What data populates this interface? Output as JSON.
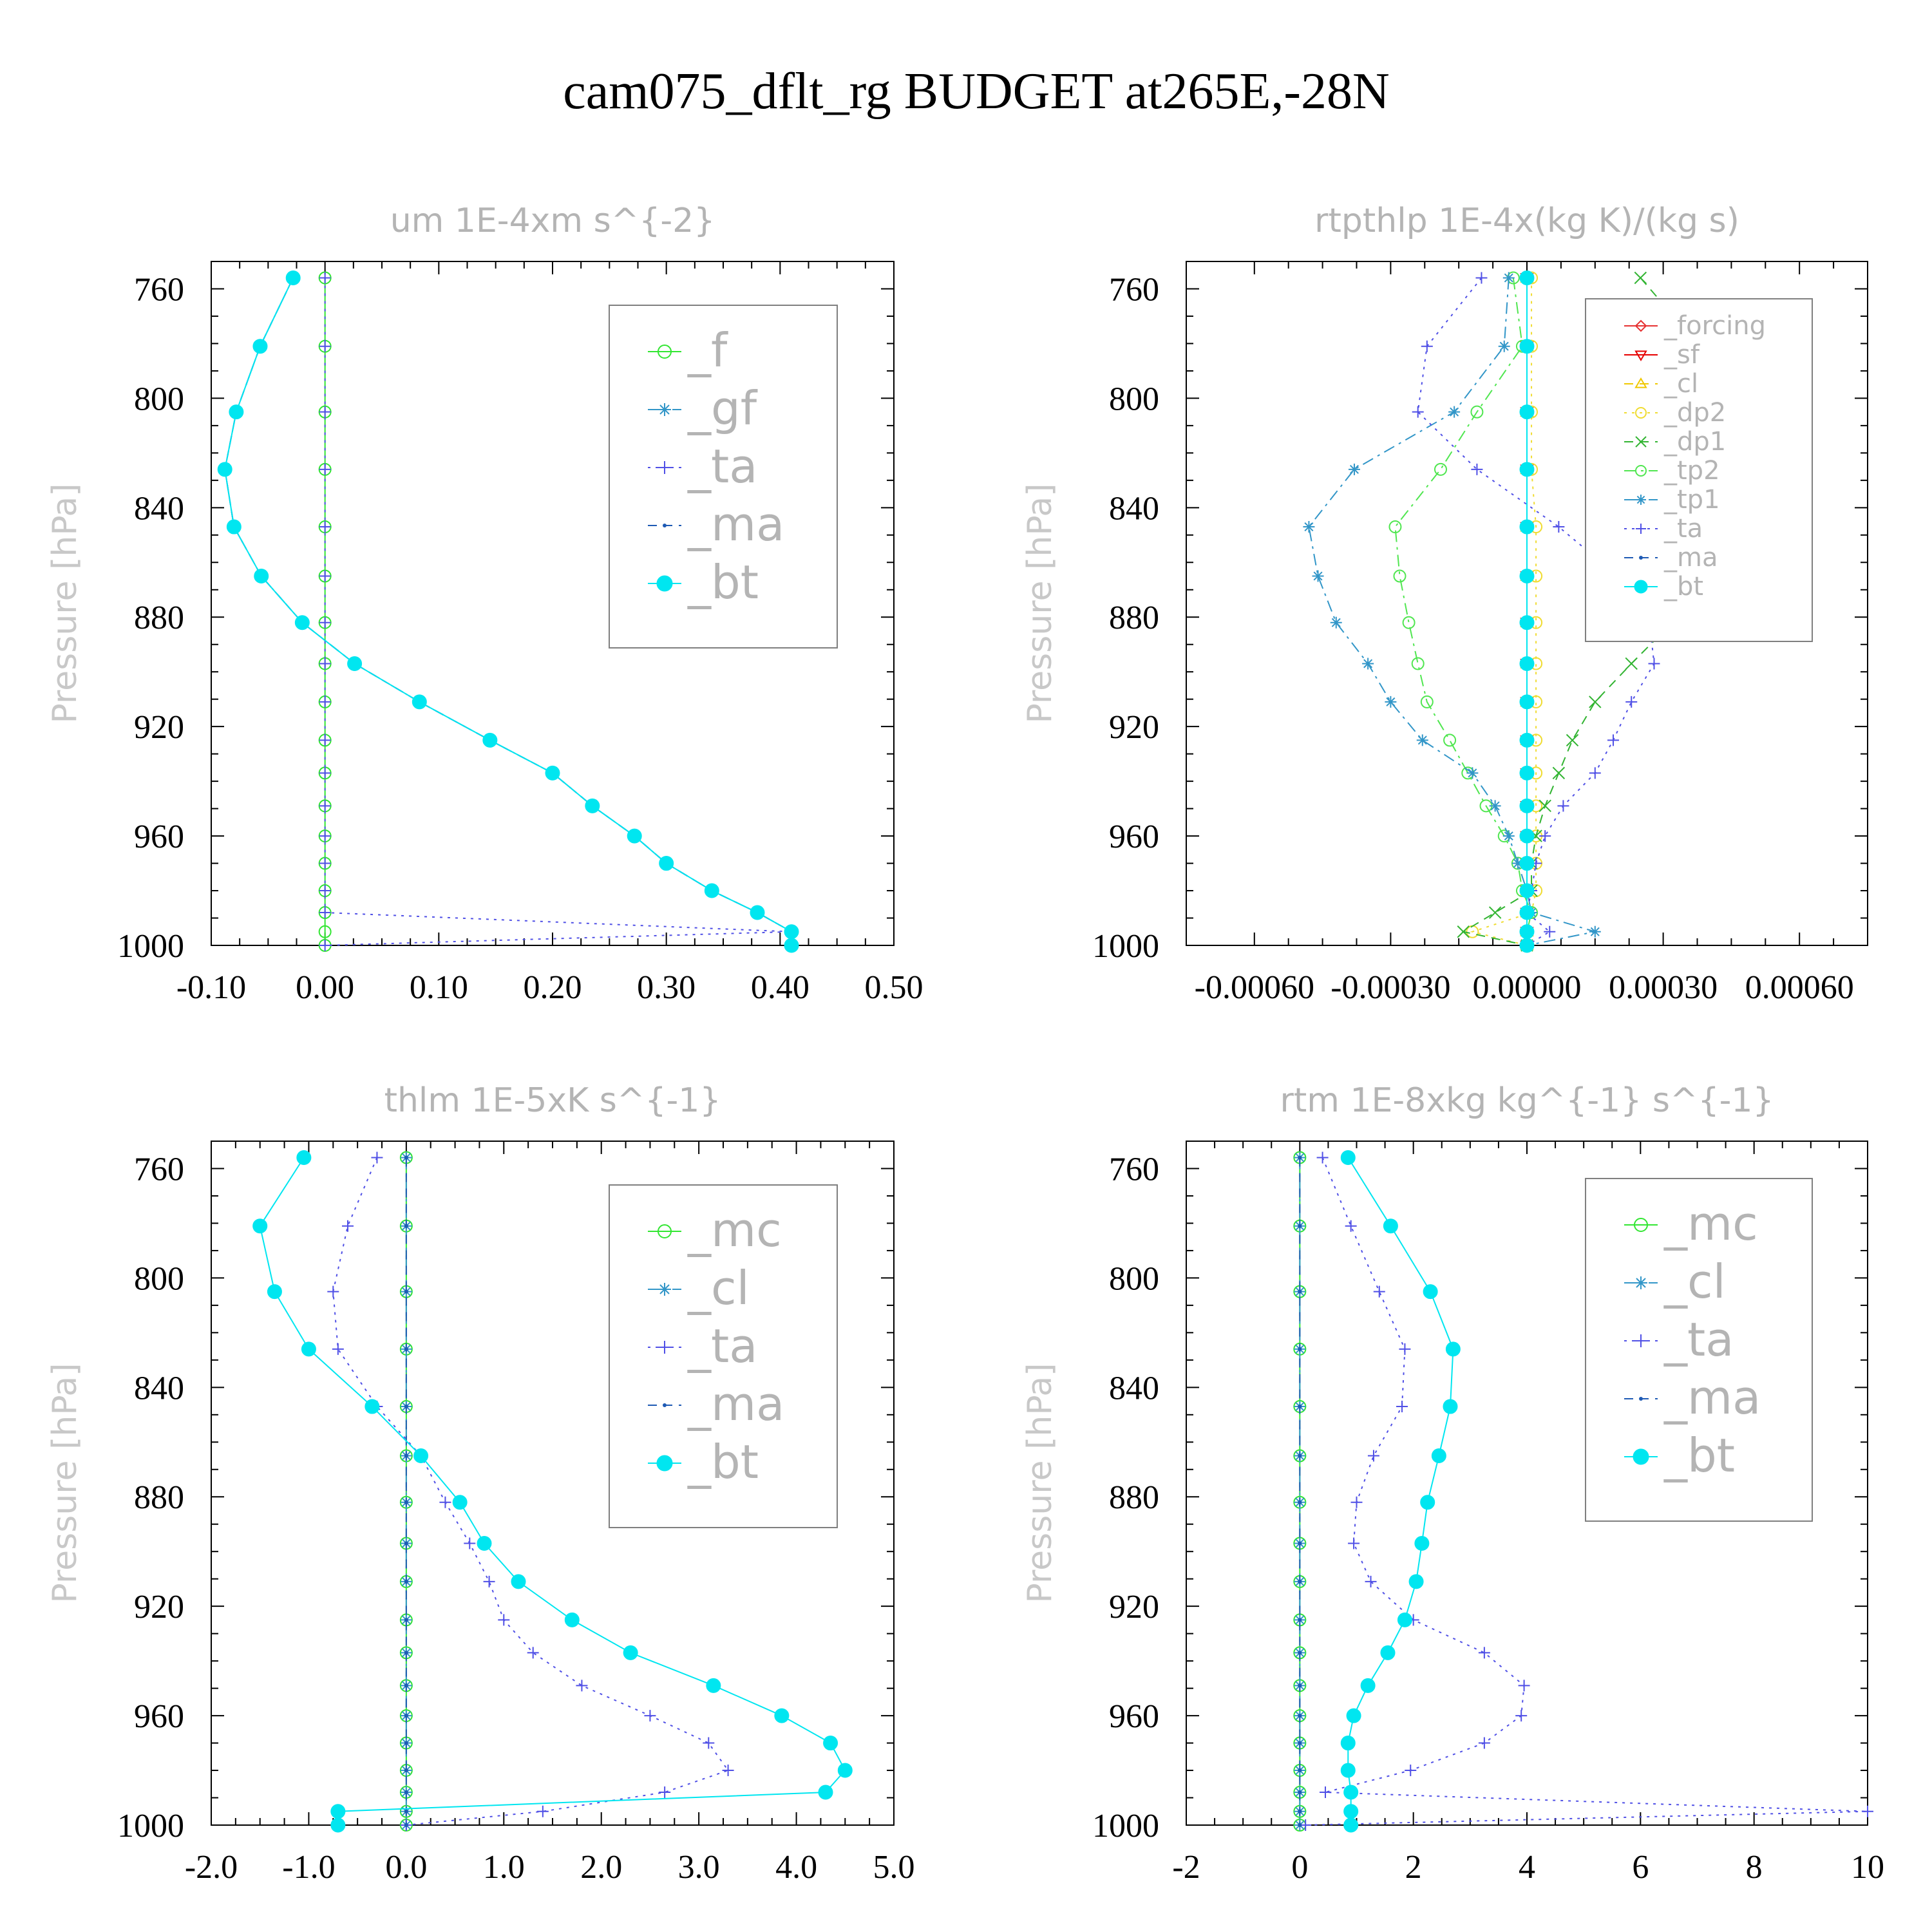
{
  "title": "cam075_dflt_rg  BUDGET at265E,-28N",
  "chart_data": [
    {
      "type": "line",
      "title": "um  1E-4xm s^{-2}",
      "ylabel": "Pressure [hPa]",
      "xlim": [
        -0.1,
        0.5
      ],
      "ylim": [
        1000,
        750
      ],
      "xticks": [
        -0.1,
        0.0,
        0.1,
        0.2,
        0.3,
        0.4,
        0.5
      ],
      "xtick_labels": [
        "-0.10",
        "0.00",
        "0.10",
        "0.20",
        "0.30",
        "0.40",
        "0.50"
      ],
      "yticks": [
        760,
        800,
        840,
        880,
        920,
        960,
        1000
      ],
      "ytick_labels": [
        "760",
        "800",
        "840",
        "880",
        "920",
        "960",
        "1000"
      ],
      "grid": false,
      "legend_position": "top-right",
      "pressure": [
        756,
        781,
        805,
        826,
        847,
        865,
        882,
        897,
        911,
        925,
        937,
        949,
        960,
        970,
        980,
        988,
        995,
        1000
      ],
      "series": [
        {
          "name": "_f",
          "color": "#32e632",
          "marker": "circle-open",
          "dash": "none",
          "values": [
            0,
            0,
            0,
            0,
            0,
            0,
            0,
            0,
            0,
            0,
            0,
            0,
            0,
            0,
            0,
            0,
            0,
            0
          ]
        },
        {
          "name": "_gf",
          "color": "#3296c8",
          "marker": "star",
          "dash": "dashdot",
          "values": [
            -0.028,
            -0.057,
            -0.078,
            -0.088,
            -0.08,
            -0.056,
            -0.02,
            0.026,
            0.083,
            0.145,
            0.2,
            0.235,
            0.272,
            0.3,
            0.34,
            0.38,
            0.41,
            0.41
          ]
        },
        {
          "name": "_ta",
          "color": "#5050e6",
          "marker": "plus",
          "dash": "dotted",
          "values": [
            0,
            0,
            0,
            0,
            0,
            0,
            0,
            0,
            0,
            0,
            0,
            0,
            0,
            0,
            0,
            0,
            0.41,
            0
          ]
        },
        {
          "name": "_ma",
          "color": "#1e5ab4",
          "marker": "dot",
          "dash": "dashed",
          "values": [
            -0.028,
            -0.057,
            -0.078,
            -0.088,
            -0.08,
            -0.056,
            -0.02,
            0.026,
            0.083,
            0.145,
            0.2,
            0.235,
            0.272,
            0.3,
            0.34,
            0.38,
            0.41,
            0.41
          ]
        },
        {
          "name": "_bt",
          "color": "#00e6f0",
          "marker": "filled",
          "dash": "solid",
          "values": [
            -0.028,
            -0.057,
            -0.078,
            -0.088,
            -0.08,
            -0.056,
            -0.02,
            0.026,
            0.083,
            0.145,
            0.2,
            0.235,
            0.272,
            0.3,
            0.34,
            0.38,
            0.41,
            0.41
          ]
        }
      ]
    },
    {
      "type": "line",
      "title": "rtpthlp  1E-4x(kg K)/(kg s)",
      "ylabel": "Pressure [hPa]",
      "xlim": [
        -0.00075,
        0.00075
      ],
      "ylim": [
        1000,
        750
      ],
      "xticks": [
        -0.0006,
        -0.0003,
        0.0,
        0.0003,
        0.0006
      ],
      "xtick_labels": [
        "-0.00060",
        "-0.00030",
        "0.00000",
        "0.00030",
        "0.00060"
      ],
      "yticks": [
        760,
        800,
        840,
        880,
        920,
        960,
        1000
      ],
      "ytick_labels": [
        "760",
        "800",
        "840",
        "880",
        "920",
        "960",
        "1000"
      ],
      "grid": false,
      "legend_position": "top-right",
      "pressure": [
        756,
        781,
        805,
        826,
        847,
        865,
        882,
        897,
        911,
        925,
        937,
        949,
        960,
        970,
        980,
        988,
        995,
        1000
      ],
      "series": [
        {
          "name": "_forcing",
          "color": "#e63232",
          "marker": "diamond-open",
          "dash": "none",
          "values": [
            0,
            0,
            0,
            0,
            0,
            0,
            0,
            0,
            0,
            0,
            0,
            0,
            0,
            0,
            0,
            0,
            0,
            0
          ]
        },
        {
          "name": "_sf",
          "color": "#e60000",
          "marker": "triangle-down",
          "dash": "solid",
          "values": [
            0,
            0,
            0,
            0,
            0,
            0,
            0,
            0,
            0,
            0,
            0,
            0,
            0,
            0,
            0,
            0,
            0,
            0
          ]
        },
        {
          "name": "_cl",
          "color": "#f0c800",
          "marker": "triangle-up",
          "dash": "dashed",
          "values": [
            0,
            0,
            0,
            0,
            0,
            0,
            0,
            0,
            0,
            0,
            0,
            0,
            0,
            0,
            0,
            0,
            0,
            0
          ]
        },
        {
          "name": "_dp2",
          "color": "#f0dc32",
          "marker": "circle-open",
          "dash": "dotted",
          "values": [
            1e-05,
            1e-05,
            1e-05,
            1e-05,
            2e-05,
            2e-05,
            2e-05,
            2e-05,
            2e-05,
            2e-05,
            2e-05,
            2e-05,
            2e-05,
            2e-05,
            2e-05,
            1e-05,
            -0.00012,
            0
          ]
        },
        {
          "name": "_dp1",
          "color": "#32b432",
          "marker": "x",
          "dash": "dashed",
          "values": [
            0.00025,
            0.00038,
            0.00052,
            0.0006,
            0.00058,
            0.00045,
            0.00032,
            0.00023,
            0.00015,
            0.0001,
            7e-05,
            4e-05,
            2e-05,
            1e-05,
            1e-05,
            -7e-05,
            -0.00014,
            0
          ]
        },
        {
          "name": "_tp2",
          "color": "#50e650",
          "marker": "circle-open",
          "dash": "dashdot",
          "values": [
            -3e-05,
            -1e-05,
            -0.00011,
            -0.00019,
            -0.00029,
            -0.00028,
            -0.00026,
            -0.00024,
            -0.00022,
            -0.00017,
            -0.00013,
            -9e-05,
            -5e-05,
            -2e-05,
            -1e-05,
            1e-05,
            0,
            0
          ]
        },
        {
          "name": "_tp1",
          "color": "#3296c8",
          "marker": "star",
          "dash": "dashdot",
          "values": [
            -4e-05,
            -5e-05,
            -0.00016,
            -0.00038,
            -0.00048,
            -0.00046,
            -0.00042,
            -0.00035,
            -0.0003,
            -0.00023,
            -0.00012,
            -7e-05,
            -4e-05,
            -2e-05,
            0,
            1e-05,
            0.00015,
            0
          ]
        },
        {
          "name": "_ta",
          "color": "#5050e6",
          "marker": "plus",
          "dash": "dotted",
          "values": [
            -0.0001,
            -0.00022,
            -0.00024,
            -0.00011,
            7e-05,
            0.0002,
            0.00027,
            0.00028,
            0.00023,
            0.00019,
            0.00015,
            8e-05,
            4e-05,
            2e-05,
            1e-05,
            0,
            5e-05,
            0
          ]
        },
        {
          "name": "_ma",
          "color": "#1e5ab4",
          "marker": "dot",
          "dash": "dashed",
          "values": [
            0,
            0,
            0,
            0,
            0,
            0,
            0,
            0,
            0,
            0,
            0,
            0,
            0,
            0,
            0,
            0,
            0,
            0
          ]
        },
        {
          "name": "_bt",
          "color": "#00e6f0",
          "marker": "filled",
          "dash": "solid",
          "values": [
            0,
            0,
            0,
            0,
            0,
            0,
            0,
            0,
            0,
            0,
            0,
            0,
            0,
            0,
            0,
            0,
            0,
            0
          ]
        }
      ]
    },
    {
      "type": "line",
      "title": "thlm  1E-5xK s^{-1}",
      "ylabel": "Pressure [hPa]",
      "xlim": [
        -2.0,
        5.0
      ],
      "ylim": [
        1000,
        750
      ],
      "xticks": [
        -2.0,
        -1.0,
        0.0,
        1.0,
        2.0,
        3.0,
        4.0,
        5.0
      ],
      "xtick_labels": [
        "-2.0",
        "-1.0",
        "0.0",
        "1.0",
        "2.0",
        "3.0",
        "4.0",
        "5.0"
      ],
      "yticks": [
        760,
        800,
        840,
        880,
        920,
        960,
        1000
      ],
      "ytick_labels": [
        "760",
        "800",
        "840",
        "880",
        "920",
        "960",
        "1000"
      ],
      "grid": false,
      "legend_position": "top-right",
      "pressure": [
        756,
        781,
        805,
        826,
        847,
        865,
        882,
        897,
        911,
        925,
        937,
        949,
        960,
        970,
        980,
        988,
        995,
        1000
      ],
      "series": [
        {
          "name": "_mc",
          "color": "#32e632",
          "marker": "circle-open",
          "dash": "none",
          "values": [
            0,
            0,
            0,
            0,
            0,
            0,
            0,
            0,
            0,
            0,
            0,
            0,
            0,
            0,
            0,
            0,
            0,
            0
          ]
        },
        {
          "name": "_cl",
          "color": "#3296c8",
          "marker": "star",
          "dash": "dashdot",
          "values": [
            0,
            0,
            0,
            0,
            0,
            0,
            0,
            0,
            0,
            0,
            0,
            0,
            0,
            0,
            0,
            0,
            0,
            0
          ]
        },
        {
          "name": "_ta",
          "color": "#5050e6",
          "marker": "plus",
          "dash": "dotted",
          "values": [
            -0.3,
            -0.6,
            -0.75,
            -0.7,
            -0.3,
            0.15,
            0.4,
            0.65,
            0.85,
            1.0,
            1.3,
            1.8,
            2.5,
            3.1,
            3.3,
            2.65,
            1.4,
            0
          ]
        },
        {
          "name": "_ma",
          "color": "#1e5ab4",
          "marker": "dot",
          "dash": "dashed",
          "values": [
            0,
            0,
            0,
            0,
            0,
            0,
            0,
            0,
            0,
            0,
            0,
            0,
            0,
            0,
            0,
            0,
            0,
            0
          ]
        },
        {
          "name": "_bt",
          "color": "#00e6f0",
          "marker": "filled",
          "dash": "solid",
          "values": [
            -1.05,
            -1.5,
            -1.35,
            -1.0,
            -0.35,
            0.15,
            0.55,
            0.8,
            1.15,
            1.7,
            2.3,
            3.15,
            3.85,
            4.35,
            4.5,
            4.3,
            -0.7,
            -0.7
          ]
        }
      ]
    },
    {
      "type": "line",
      "title": "rtm  1E-8xkg kg^{-1} s^{-1}",
      "ylabel": "Pressure [hPa]",
      "xlim": [
        -2,
        10
      ],
      "ylim": [
        1000,
        750
      ],
      "xticks": [
        -2,
        0,
        2,
        4,
        6,
        8,
        10
      ],
      "xtick_labels": [
        "-2",
        "0",
        "2",
        "4",
        "6",
        "8",
        "10"
      ],
      "yticks": [
        760,
        800,
        840,
        880,
        920,
        960,
        1000
      ],
      "ytick_labels": [
        "760",
        "800",
        "840",
        "880",
        "920",
        "960",
        "1000"
      ],
      "grid": false,
      "legend_position": "top-right",
      "pressure": [
        756,
        781,
        805,
        826,
        847,
        865,
        882,
        897,
        911,
        925,
        937,
        949,
        960,
        970,
        980,
        988,
        995,
        1000
      ],
      "series": [
        {
          "name": "_mc",
          "color": "#32e632",
          "marker": "circle-open",
          "dash": "none",
          "values": [
            0,
            0,
            0,
            0,
            0,
            0,
            0,
            0,
            0,
            0,
            0,
            0,
            0,
            0,
            0,
            0,
            0,
            0
          ]
        },
        {
          "name": "_cl",
          "color": "#3296c8",
          "marker": "star",
          "dash": "dashdot",
          "values": [
            0,
            0,
            0,
            0,
            0,
            0,
            0,
            0,
            0,
            0,
            0,
            0,
            0,
            0,
            0,
            0,
            0,
            0
          ]
        },
        {
          "name": "_ta",
          "color": "#5050e6",
          "marker": "plus",
          "dash": "dotted",
          "values": [
            0.4,
            0.9,
            1.4,
            1.85,
            1.8,
            1.3,
            1.0,
            0.95,
            1.25,
            2.0,
            3.25,
            3.95,
            3.9,
            3.25,
            1.95,
            0.45,
            10.0,
            0.1
          ]
        },
        {
          "name": "_ma",
          "color": "#1e5ab4",
          "marker": "dot",
          "dash": "dashed",
          "values": [
            0,
            0,
            0,
            0,
            0,
            0,
            0,
            0,
            0,
            0,
            0,
            0,
            0,
            0,
            0,
            0,
            0,
            0
          ]
        },
        {
          "name": "_bt",
          "color": "#00e6f0",
          "marker": "filled",
          "dash": "solid",
          "values": [
            0.85,
            1.6,
            2.3,
            2.7,
            2.65,
            2.45,
            2.25,
            2.15,
            2.05,
            1.85,
            1.55,
            1.2,
            0.95,
            0.85,
            0.85,
            0.9,
            0.9,
            0.9
          ]
        }
      ]
    }
  ]
}
